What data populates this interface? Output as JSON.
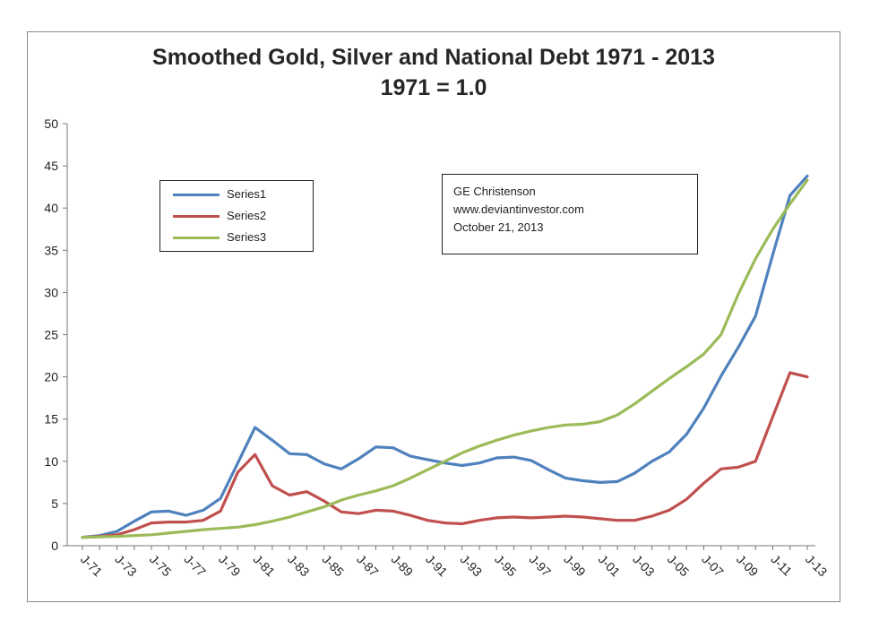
{
  "chart_data": {
    "type": "line",
    "title": "Smoothed Gold, Silver and National Debt 1971 - 2013",
    "subtitle": "1971 = 1.0",
    "xlabel": "",
    "ylabel": "",
    "ylim": [
      0,
      50
    ],
    "yticks": [
      0,
      5,
      10,
      15,
      20,
      25,
      30,
      35,
      40,
      45,
      50
    ],
    "grid": false,
    "legend_position": "upper-left",
    "x_tick_labels": [
      "J-71",
      "J-73",
      "J-75",
      "J-77",
      "J-79",
      "J-81",
      "J-83",
      "J-85",
      "J-87",
      "J-89",
      "J-91",
      "J-93",
      "J-95",
      "J-97",
      "J-99",
      "J-01",
      "J-03",
      "J-05",
      "J-07",
      "J-09",
      "J-11",
      "J-13"
    ],
    "x_years": [
      1971,
      1972,
      1973,
      1974,
      1975,
      1976,
      1977,
      1978,
      1979,
      1980,
      1981,
      1982,
      1983,
      1984,
      1985,
      1986,
      1987,
      1988,
      1989,
      1990,
      1991,
      1992,
      1993,
      1994,
      1995,
      1996,
      1997,
      1998,
      1999,
      2000,
      2001,
      2002,
      2003,
      2004,
      2005,
      2006,
      2007,
      2008,
      2009,
      2010,
      2011,
      2012,
      2013
    ],
    "series": [
      {
        "name": "Series1",
        "color": "#4f81bd",
        "values": [
          1.0,
          1.2,
          1.7,
          2.9,
          4.0,
          4.1,
          3.6,
          4.2,
          5.6,
          9.8,
          14.0,
          12.5,
          10.9,
          10.8,
          9.7,
          9.1,
          10.3,
          11.7,
          11.6,
          10.6,
          10.2,
          9.8,
          9.5,
          9.8,
          10.4,
          10.5,
          10.1,
          9.0,
          8.0,
          7.7,
          7.5,
          7.6,
          8.6,
          10.0,
          11.1,
          13.2,
          16.3,
          20.1,
          23.5,
          27.2,
          34.5,
          41.5,
          43.8
        ]
      },
      {
        "name": "Series2",
        "color": "#c0504d",
        "values": [
          1.0,
          1.1,
          1.3,
          1.9,
          2.7,
          2.8,
          2.8,
          3.0,
          4.1,
          8.7,
          10.8,
          7.1,
          6.0,
          6.4,
          5.3,
          4.0,
          3.8,
          4.2,
          4.1,
          3.6,
          3.0,
          2.7,
          2.6,
          3.0,
          3.3,
          3.4,
          3.3,
          3.4,
          3.5,
          3.4,
          3.2,
          3.0,
          3.0,
          3.5,
          4.2,
          5.5,
          7.4,
          9.1,
          9.3,
          10.0,
          15.3,
          20.5,
          20.0
        ]
      },
      {
        "name": "Series3",
        "color": "#9bbb59",
        "values": [
          1.0,
          1.05,
          1.1,
          1.2,
          1.3,
          1.5,
          1.7,
          1.9,
          2.05,
          2.2,
          2.5,
          2.9,
          3.4,
          4.0,
          4.6,
          5.4,
          6.0,
          6.5,
          7.1,
          8.0,
          9.0,
          10.0,
          11.0,
          11.8,
          12.5,
          13.1,
          13.6,
          14.0,
          14.3,
          14.4,
          14.7,
          15.5,
          16.8,
          18.3,
          19.8,
          21.2,
          22.7,
          25.0,
          29.8,
          34.0,
          37.5,
          40.5,
          43.3
        ]
      }
    ]
  },
  "annotation": {
    "lines": [
      "GE Christenson",
      "www.deviantinvestor.com",
      "October 21, 2013"
    ]
  }
}
